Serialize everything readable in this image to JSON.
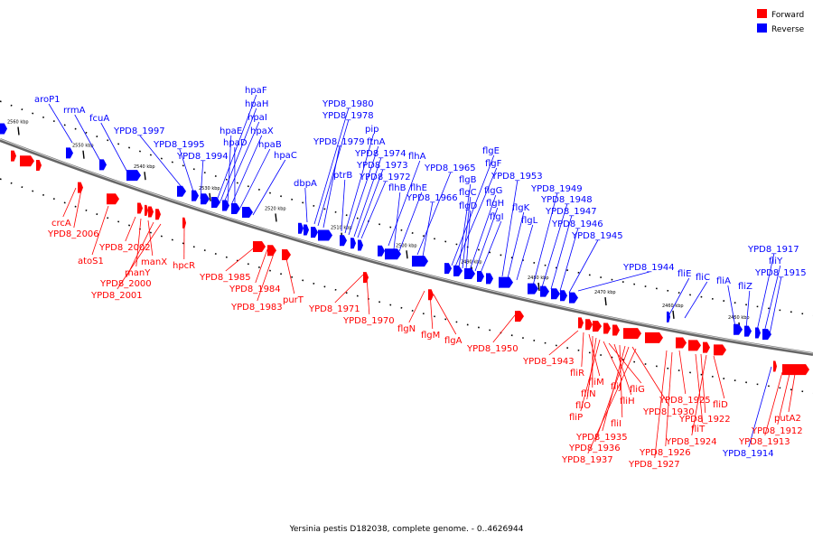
{
  "caption": "Yersinia pestis D182038, complete genome. - 0..4626944",
  "colors": {
    "forward": "#ff0000",
    "reverse": "#0000ff",
    "axis": "#555555"
  },
  "legend": [
    {
      "key": "forward",
      "label": "Forward"
    },
    {
      "key": "reverse",
      "label": "Reverse"
    }
  ],
  "ticks": [
    "2560 kbp",
    "2550 kbp",
    "2540 kbp",
    "2530 kbp",
    "2520 kbp",
    "2510 kbp",
    "2500 kbp",
    "2490 kbp",
    "2480 kbp",
    "2470 kbp",
    "2460 kbp",
    "2450 kbp"
  ],
  "top_labels": [
    "aroP1",
    "rrmA",
    "fcuA",
    "YPD8_1997",
    "YPD8_1995",
    "YPD8_1994",
    "hpaF",
    "hpaH",
    "hpaI",
    "hpaE",
    "hpaX",
    "hpaD",
    "hpaB",
    "hpaC",
    "YPD8_1980",
    "YPD8_1978",
    "YPD8_1979",
    "pip",
    "ftnA",
    "YPD8_1974",
    "YPD8_1973",
    "YPD8_1972",
    "dbpA",
    "ptrB",
    "flhA",
    "flhB",
    "flhE",
    "YPD8_1965",
    "YPD8_1966",
    "flgE",
    "flgF",
    "flgB",
    "flgC",
    "flgD",
    "flgG",
    "flgH",
    "flgI",
    "YPD8_1953",
    "flgK",
    "flgL",
    "YPD8_1949",
    "YPD8_1948",
    "YPD8_1947",
    "YPD8_1946",
    "YPD8_1945",
    "YPD8_1944",
    "fliE",
    "fliC",
    "fliA",
    "fliZ",
    "YPD8_1917",
    "fliY",
    "YPD8_1915"
  ],
  "bottom_labels": [
    "crcA",
    "YPD8_2006",
    "atoS1",
    "YPD8_2002",
    "manY",
    "manX",
    "YPD8_2000",
    "YPD8_2001",
    "hpcR",
    "YPD8_1985",
    "YPD8_1984",
    "YPD8_1983",
    "purT",
    "YPD8_1971",
    "YPD8_1970",
    "flgN",
    "flgM",
    "flgA",
    "YPD8_1950",
    "YPD8_1943",
    "fliR",
    "fliM",
    "fliN",
    "fliO",
    "fliP",
    "fliJ",
    "fliG",
    "fliH",
    "fliI",
    "YPD8_1930",
    "YPD8_1935",
    "YPD8_1936",
    "YPD8_1937",
    "YPD8_1925",
    "YPD8_1922",
    "fliD",
    "fliT",
    "YPD8_1926",
    "YPD8_1924",
    "YPD8_1927",
    "putA2",
    "YPD8_1912",
    "YPD8_1913",
    "YPD8_1914"
  ]
}
